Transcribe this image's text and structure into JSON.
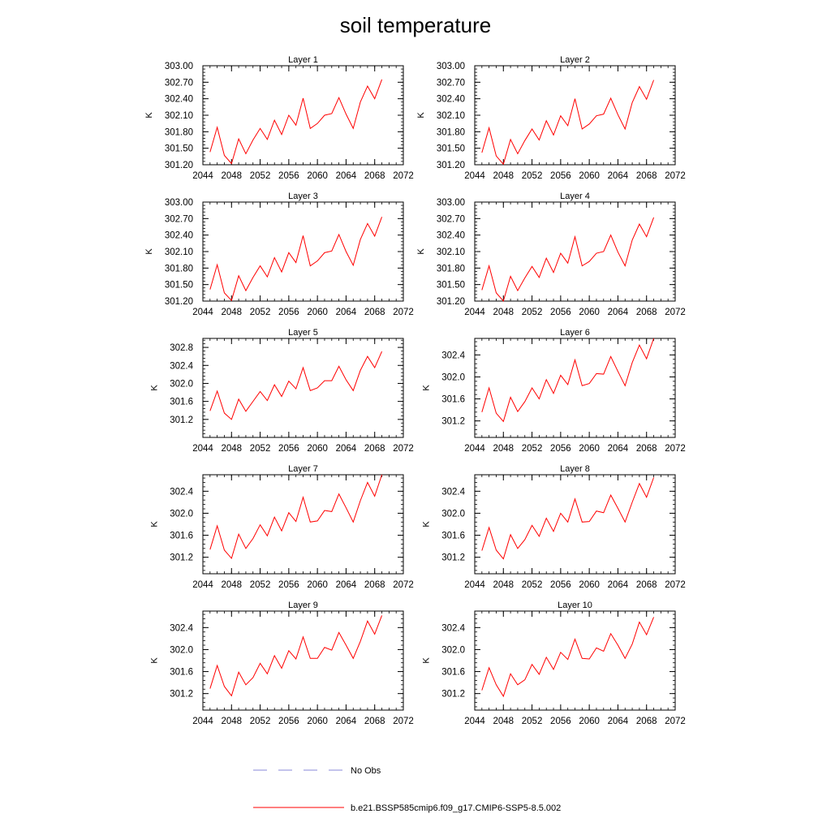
{
  "title": "soil temperature",
  "legend": {
    "placement": "bottom",
    "entries": [
      {
        "label": "No Obs",
        "color": "#8a8ad8",
        "style": "dashed"
      },
      {
        "label": "b.e21.BSSP585cmip6.f09_g17.CMIP6-SSP5-8.5.002",
        "color": "#ff0000",
        "style": "solid"
      }
    ]
  },
  "chart_data": [
    {
      "type": "line",
      "title": "Layer 1",
      "xlabel": "",
      "ylabel": "K",
      "xlim": [
        2044,
        2072
      ],
      "xticks": [
        2044,
        2048,
        2052,
        2056,
        2060,
        2064,
        2068,
        2072
      ],
      "xtick_labels": [
        "2044",
        "2048",
        "2052",
        "2056",
        "2060",
        "2064",
        "2068",
        "2072"
      ],
      "ylim": [
        301.2,
        303.0
      ],
      "yticks": [
        301.2,
        301.5,
        301.8,
        302.1,
        302.4,
        302.7,
        303.0
      ],
      "ytick_labels": [
        "301.20",
        "301.50",
        "301.80",
        "302.10",
        "302.40",
        "302.70",
        "303.00"
      ],
      "x": [
        2045,
        2046,
        2047,
        2048,
        2049,
        2050,
        2051,
        2052,
        2053,
        2054,
        2055,
        2056,
        2057,
        2058,
        2059,
        2060,
        2061,
        2062,
        2063,
        2064,
        2065,
        2066,
        2067,
        2068,
        2069
      ],
      "series": [
        {
          "name": "b.e21.BSSP585cmip6.f09_g17.CMIP6-SSP5-8.5.002",
          "color": "#ff0000",
          "values": [
            301.43,
            301.88,
            301.37,
            301.22,
            301.67,
            301.4,
            301.65,
            301.86,
            301.66,
            302.01,
            301.75,
            302.1,
            301.92,
            302.41,
            301.86,
            301.95,
            302.1,
            302.13,
            302.42,
            302.12,
            301.86,
            302.34,
            302.63,
            302.4,
            302.75
          ]
        }
      ]
    },
    {
      "type": "line",
      "title": "Layer 2",
      "xlabel": "",
      "ylabel": "K",
      "xlim": [
        2044,
        2072
      ],
      "xticks": [
        2044,
        2048,
        2052,
        2056,
        2060,
        2064,
        2068,
        2072
      ],
      "xtick_labels": [
        "2044",
        "2048",
        "2052",
        "2056",
        "2060",
        "2064",
        "2068",
        "2072"
      ],
      "ylim": [
        301.2,
        303.0
      ],
      "yticks": [
        301.2,
        301.5,
        301.8,
        302.1,
        302.4,
        302.7,
        303.0
      ],
      "ytick_labels": [
        "301.20",
        "301.50",
        "301.80",
        "302.10",
        "302.40",
        "302.70",
        "303.00"
      ],
      "x": [
        2045,
        2046,
        2047,
        2048,
        2049,
        2050,
        2051,
        2052,
        2053,
        2054,
        2055,
        2056,
        2057,
        2058,
        2059,
        2060,
        2061,
        2062,
        2063,
        2064,
        2065,
        2066,
        2067,
        2068,
        2069
      ],
      "series": [
        {
          "name": "b.e21.BSSP585cmip6.f09_g17.CMIP6-SSP5-8.5.002",
          "color": "#ff0000",
          "values": [
            301.42,
            301.87,
            301.36,
            301.21,
            301.66,
            301.4,
            301.64,
            301.85,
            301.65,
            302.0,
            301.74,
            302.09,
            301.91,
            302.4,
            301.85,
            301.94,
            302.09,
            302.12,
            302.41,
            302.11,
            301.85,
            302.33,
            302.62,
            302.39,
            302.74
          ]
        }
      ]
    },
    {
      "type": "line",
      "title": "Layer 3",
      "xlabel": "",
      "ylabel": "K",
      "xlim": [
        2044,
        2072
      ],
      "xticks": [
        2044,
        2048,
        2052,
        2056,
        2060,
        2064,
        2068,
        2072
      ],
      "xtick_labels": [
        "2044",
        "2048",
        "2052",
        "2056",
        "2060",
        "2064",
        "2068",
        "2072"
      ],
      "ylim": [
        301.2,
        303.0
      ],
      "yticks": [
        301.2,
        301.5,
        301.8,
        302.1,
        302.4,
        302.7,
        303.0
      ],
      "ytick_labels": [
        "301.20",
        "301.50",
        "301.80",
        "302.10",
        "302.40",
        "302.70",
        "303.00"
      ],
      "x": [
        2045,
        2046,
        2047,
        2048,
        2049,
        2050,
        2051,
        2052,
        2053,
        2054,
        2055,
        2056,
        2057,
        2058,
        2059,
        2060,
        2061,
        2062,
        2063,
        2064,
        2065,
        2066,
        2067,
        2068,
        2069
      ],
      "series": [
        {
          "name": "b.e21.BSSP585cmip6.f09_g17.CMIP6-SSP5-8.5.002",
          "color": "#ff0000",
          "values": [
            301.41,
            301.86,
            301.35,
            301.21,
            301.66,
            301.39,
            301.63,
            301.84,
            301.64,
            301.99,
            301.73,
            302.08,
            301.9,
            302.39,
            301.84,
            301.93,
            302.08,
            302.11,
            302.41,
            302.1,
            301.85,
            302.32,
            302.61,
            302.38,
            302.73
          ]
        }
      ]
    },
    {
      "type": "line",
      "title": "Layer 4",
      "xlabel": "",
      "ylabel": "K",
      "xlim": [
        2044,
        2072
      ],
      "xticks": [
        2044,
        2048,
        2052,
        2056,
        2060,
        2064,
        2068,
        2072
      ],
      "xtick_labels": [
        "2044",
        "2048",
        "2052",
        "2056",
        "2060",
        "2064",
        "2068",
        "2072"
      ],
      "ylim": [
        301.2,
        303.0
      ],
      "yticks": [
        301.2,
        301.5,
        301.8,
        302.1,
        302.4,
        302.7,
        303.0
      ],
      "ytick_labels": [
        "301.20",
        "301.50",
        "301.80",
        "302.10",
        "302.40",
        "302.70",
        "303.00"
      ],
      "x": [
        2045,
        2046,
        2047,
        2048,
        2049,
        2050,
        2051,
        2052,
        2053,
        2054,
        2055,
        2056,
        2057,
        2058,
        2059,
        2060,
        2061,
        2062,
        2063,
        2064,
        2065,
        2066,
        2067,
        2068,
        2069
      ],
      "series": [
        {
          "name": "b.e21.BSSP585cmip6.f09_g17.CMIP6-SSP5-8.5.002",
          "color": "#ff0000",
          "values": [
            301.4,
            301.84,
            301.35,
            301.2,
            301.65,
            301.39,
            301.62,
            301.83,
            301.63,
            301.98,
            301.72,
            302.07,
            301.89,
            302.37,
            301.84,
            301.92,
            302.07,
            302.1,
            302.4,
            302.09,
            301.84,
            302.31,
            302.6,
            302.37,
            302.72
          ]
        }
      ]
    },
    {
      "type": "line",
      "title": "Layer 5",
      "xlabel": "",
      "ylabel": "K",
      "xlim": [
        2044,
        2072
      ],
      "xticks": [
        2044,
        2048,
        2052,
        2056,
        2060,
        2064,
        2068,
        2072
      ],
      "xtick_labels": [
        "2044",
        "2048",
        "2052",
        "2056",
        "2060",
        "2064",
        "2068",
        "2072"
      ],
      "ylim": [
        300.8,
        303.0
      ],
      "yticks": [
        301.2,
        301.6,
        302.0,
        302.4,
        302.8
      ],
      "ytick_labels": [
        "301.2",
        "301.6",
        "302.0",
        "302.4",
        "302.8"
      ],
      "x": [
        2045,
        2046,
        2047,
        2048,
        2049,
        2050,
        2051,
        2052,
        2053,
        2054,
        2055,
        2056,
        2057,
        2058,
        2059,
        2060,
        2061,
        2062,
        2063,
        2064,
        2065,
        2066,
        2067,
        2068,
        2069
      ],
      "series": [
        {
          "name": "b.e21.BSSP585cmip6.f09_g17.CMIP6-SSP5-8.5.002",
          "color": "#ff0000",
          "values": [
            301.39,
            301.83,
            301.34,
            301.2,
            301.65,
            301.38,
            301.6,
            301.82,
            301.62,
            301.97,
            301.71,
            302.05,
            301.88,
            302.35,
            301.84,
            301.9,
            302.06,
            302.06,
            302.38,
            302.08,
            301.84,
            302.29,
            302.6,
            302.35,
            302.71
          ]
        }
      ]
    },
    {
      "type": "line",
      "title": "Layer 6",
      "xlabel": "",
      "ylabel": "K",
      "xlim": [
        2044,
        2072
      ],
      "xticks": [
        2044,
        2048,
        2052,
        2056,
        2060,
        2064,
        2068,
        2072
      ],
      "xtick_labels": [
        "2044",
        "2048",
        "2052",
        "2056",
        "2060",
        "2064",
        "2068",
        "2072"
      ],
      "ylim": [
        300.9,
        302.7
      ],
      "yticks": [
        301.2,
        301.6,
        302.0,
        302.4
      ],
      "ytick_labels": [
        "301.2",
        "301.6",
        "302.0",
        "302.4"
      ],
      "x": [
        2045,
        2046,
        2047,
        2048,
        2049,
        2050,
        2051,
        2052,
        2053,
        2054,
        2055,
        2056,
        2057,
        2058,
        2059,
        2060,
        2061,
        2062,
        2063,
        2064,
        2065,
        2066,
        2067,
        2068,
        2069
      ],
      "series": [
        {
          "name": "b.e21.BSSP585cmip6.f09_g17.CMIP6-SSP5-8.5.002",
          "color": "#ff0000",
          "values": [
            301.36,
            301.8,
            301.34,
            301.19,
            301.63,
            301.37,
            301.55,
            301.8,
            301.6,
            301.95,
            301.7,
            302.03,
            301.86,
            302.31,
            301.84,
            301.88,
            302.06,
            302.05,
            302.37,
            302.1,
            301.84,
            302.26,
            302.58,
            302.33,
            302.7
          ]
        }
      ]
    },
    {
      "type": "line",
      "title": "Layer 7",
      "xlabel": "",
      "ylabel": "K",
      "xlim": [
        2044,
        2072
      ],
      "xticks": [
        2044,
        2048,
        2052,
        2056,
        2060,
        2064,
        2068,
        2072
      ],
      "xtick_labels": [
        "2044",
        "2048",
        "2052",
        "2056",
        "2060",
        "2064",
        "2068",
        "2072"
      ],
      "ylim": [
        300.9,
        302.7
      ],
      "yticks": [
        301.2,
        301.6,
        302.0,
        302.4
      ],
      "ytick_labels": [
        "301.2",
        "301.6",
        "302.0",
        "302.4"
      ],
      "x": [
        2045,
        2046,
        2047,
        2048,
        2049,
        2050,
        2051,
        2052,
        2053,
        2054,
        2055,
        2056,
        2057,
        2058,
        2059,
        2060,
        2061,
        2062,
        2063,
        2064,
        2065,
        2066,
        2067,
        2068,
        2069
      ],
      "series": [
        {
          "name": "b.e21.BSSP585cmip6.f09_g17.CMIP6-SSP5-8.5.002",
          "color": "#ff0000",
          "values": [
            301.34,
            301.77,
            301.33,
            301.18,
            301.62,
            301.36,
            301.54,
            301.79,
            301.59,
            301.93,
            301.68,
            302.01,
            301.85,
            302.29,
            301.84,
            301.86,
            302.05,
            302.03,
            302.35,
            302.1,
            301.84,
            302.23,
            302.56,
            302.31,
            302.7
          ]
        }
      ]
    },
    {
      "type": "line",
      "title": "Layer 8",
      "xlabel": "",
      "ylabel": "K",
      "xlim": [
        2044,
        2072
      ],
      "xticks": [
        2044,
        2048,
        2052,
        2056,
        2060,
        2064,
        2068,
        2072
      ],
      "xtick_labels": [
        "2044",
        "2048",
        "2052",
        "2056",
        "2060",
        "2064",
        "2068",
        "2072"
      ],
      "ylim": [
        300.9,
        302.7
      ],
      "yticks": [
        301.2,
        301.6,
        302.0,
        302.4
      ],
      "ytick_labels": [
        "301.2",
        "301.6",
        "302.0",
        "302.4"
      ],
      "x": [
        2045,
        2046,
        2047,
        2048,
        2049,
        2050,
        2051,
        2052,
        2053,
        2054,
        2055,
        2056,
        2057,
        2058,
        2059,
        2060,
        2061,
        2062,
        2063,
        2064,
        2065,
        2066,
        2067,
        2068,
        2069
      ],
      "series": [
        {
          "name": "b.e21.BSSP585cmip6.f09_g17.CMIP6-SSP5-8.5.002",
          "color": "#ff0000",
          "values": [
            301.32,
            301.74,
            301.33,
            301.17,
            301.61,
            301.36,
            301.52,
            301.78,
            301.58,
            301.91,
            301.67,
            302.0,
            301.84,
            302.26,
            301.84,
            301.85,
            302.04,
            302.01,
            302.33,
            302.09,
            301.84,
            302.2,
            302.54,
            302.29,
            302.65
          ]
        }
      ]
    },
    {
      "type": "line",
      "title": "Layer 9",
      "xlabel": "",
      "ylabel": "K",
      "xlim": [
        2044,
        2072
      ],
      "xticks": [
        2044,
        2048,
        2052,
        2056,
        2060,
        2064,
        2068,
        2072
      ],
      "xtick_labels": [
        "2044",
        "2048",
        "2052",
        "2056",
        "2060",
        "2064",
        "2068",
        "2072"
      ],
      "ylim": [
        300.9,
        302.7
      ],
      "yticks": [
        301.2,
        301.6,
        302.0,
        302.4
      ],
      "ytick_labels": [
        "301.2",
        "301.6",
        "302.0",
        "302.4"
      ],
      "x": [
        2045,
        2046,
        2047,
        2048,
        2049,
        2050,
        2051,
        2052,
        2053,
        2054,
        2055,
        2056,
        2057,
        2058,
        2059,
        2060,
        2061,
        2062,
        2063,
        2064,
        2065,
        2066,
        2067,
        2068,
        2069
      ],
      "series": [
        {
          "name": "b.e21.BSSP585cmip6.f09_g17.CMIP6-SSP5-8.5.002",
          "color": "#ff0000",
          "values": [
            301.29,
            301.71,
            301.33,
            301.16,
            301.59,
            301.36,
            301.49,
            301.75,
            301.56,
            301.89,
            301.66,
            301.98,
            301.83,
            302.23,
            301.84,
            301.84,
            302.04,
            301.99,
            302.31,
            302.08,
            301.84,
            302.15,
            302.52,
            302.28,
            302.62
          ]
        }
      ]
    },
    {
      "type": "line",
      "title": "Layer 10",
      "xlabel": "",
      "ylabel": "K",
      "xlim": [
        2044,
        2072
      ],
      "xticks": [
        2044,
        2048,
        2052,
        2056,
        2060,
        2064,
        2068,
        2072
      ],
      "xtick_labels": [
        "2044",
        "2048",
        "2052",
        "2056",
        "2060",
        "2064",
        "2068",
        "2072"
      ],
      "ylim": [
        300.9,
        302.7
      ],
      "yticks": [
        301.2,
        301.6,
        302.0,
        302.4
      ],
      "ytick_labels": [
        "301.2",
        "301.6",
        "302.0",
        "302.4"
      ],
      "x": [
        2045,
        2046,
        2047,
        2048,
        2049,
        2050,
        2051,
        2052,
        2053,
        2054,
        2055,
        2056,
        2057,
        2058,
        2059,
        2060,
        2061,
        2062,
        2063,
        2064,
        2065,
        2066,
        2067,
        2068,
        2069
      ],
      "series": [
        {
          "name": "b.e21.BSSP585cmip6.f09_g17.CMIP6-SSP5-8.5.002",
          "color": "#ff0000",
          "values": [
            301.26,
            301.67,
            301.36,
            301.15,
            301.56,
            301.36,
            301.45,
            301.73,
            301.55,
            301.86,
            301.64,
            301.95,
            301.82,
            302.19,
            301.84,
            301.83,
            302.03,
            301.97,
            302.29,
            302.08,
            301.84,
            302.1,
            302.5,
            302.27,
            302.59
          ]
        }
      ]
    }
  ]
}
